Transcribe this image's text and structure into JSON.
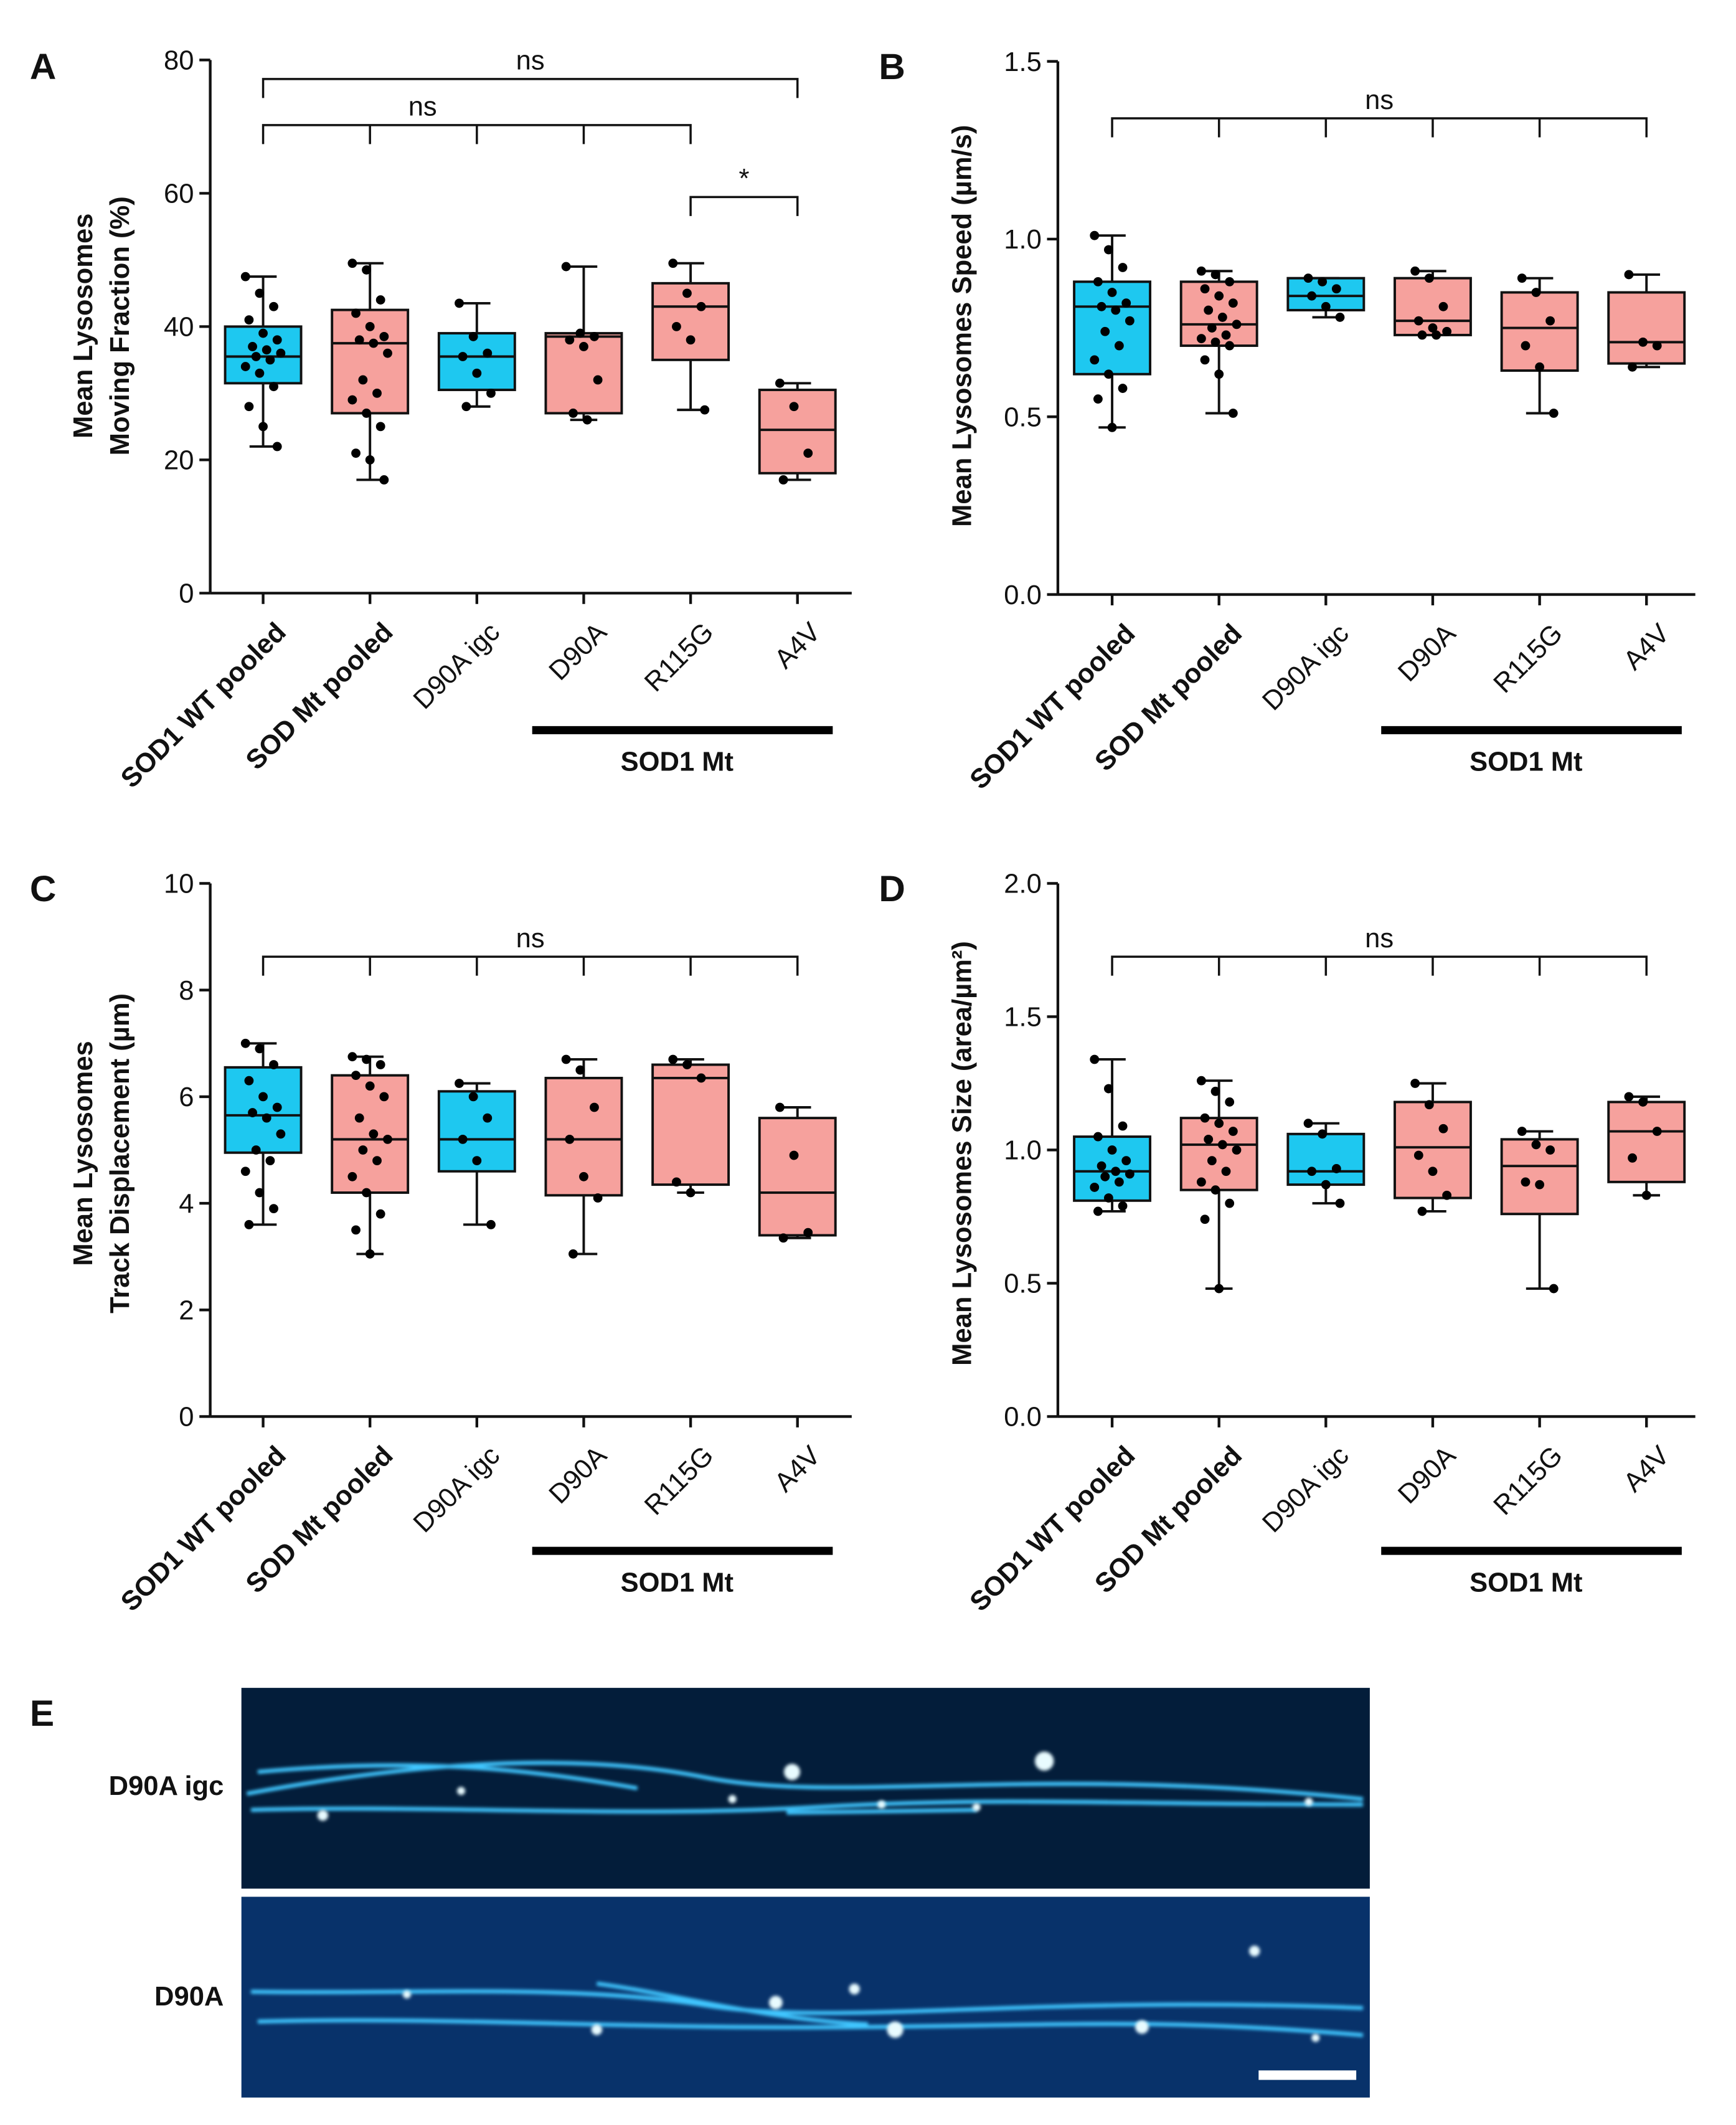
{
  "chart_data": [
    {
      "type": "box",
      "panel": "A",
      "ylabel": [
        "Mean Lysosomes",
        "Moving Fraction (%)"
      ],
      "categories": [
        "SOD1 WT pooled",
        "SOD Mt pooled",
        "D90A igc",
        "D90A",
        "R115G",
        "A4V"
      ],
      "colors": [
        "#1ec8f0",
        "#f6a19d",
        "#1ec8f0",
        "#f6a19d",
        "#f6a19d",
        "#f6a19d"
      ],
      "group_label": "SOD1 Mt",
      "annotations": [
        "ns",
        "ns",
        "*"
      ],
      "ylim": [
        0,
        80
      ],
      "yticks": [
        0,
        20,
        40,
        60,
        80
      ],
      "boxes": [
        {
          "min": 22,
          "q1": 31.5,
          "median": 35.5,
          "q3": 40,
          "max": 47.5,
          "points": [
            47.5,
            45,
            43,
            41,
            39,
            38,
            37,
            36.5,
            36,
            35.5,
            35,
            34,
            33,
            31,
            28,
            25,
            22
          ]
        },
        {
          "min": 17,
          "q1": 27,
          "median": 37.5,
          "q3": 42.5,
          "max": 49.5,
          "points": [
            49.5,
            48.5,
            44,
            42,
            40,
            38.5,
            38,
            37.5,
            36,
            32,
            30,
            29,
            27,
            25,
            21,
            20,
            17
          ]
        },
        {
          "min": 28,
          "q1": 30.5,
          "median": 35.5,
          "q3": 39,
          "max": 43.5,
          "points": [
            43.5,
            38.5,
            36,
            35.5,
            33,
            30,
            28
          ]
        },
        {
          "min": 26,
          "q1": 27,
          "median": 38.5,
          "q3": 39,
          "max": 49,
          "points": [
            49,
            39,
            38.5,
            38,
            37,
            32,
            27,
            26
          ]
        },
        {
          "min": 27.5,
          "q1": 35,
          "median": 43,
          "q3": 46.5,
          "max": 49.5,
          "points": [
            49.5,
            45,
            43,
            40,
            38,
            27.5
          ]
        },
        {
          "min": 17,
          "q1": 18,
          "median": 24.5,
          "q3": 30.5,
          "max": 31.5,
          "points": [
            31.5,
            28,
            21,
            17
          ]
        }
      ]
    },
    {
      "type": "box",
      "panel": "B",
      "ylabel": [
        "Mean Lysosomes  Speed (µm/s)"
      ],
      "categories": [
        "SOD1 WT pooled",
        "SOD Mt pooled",
        "D90A igc",
        "D90A",
        "R115G",
        "A4V"
      ],
      "colors": [
        "#1ec8f0",
        "#f6a19d",
        "#1ec8f0",
        "#f6a19d",
        "#f6a19d",
        "#f6a19d"
      ],
      "group_label": "SOD1 Mt",
      "annotations": [
        "ns"
      ],
      "ylim": [
        0,
        1.5
      ],
      "yticks": [
        {
          "value": 0,
          "label": "0.0"
        },
        {
          "value": 0.5,
          "label": "0.5"
        },
        {
          "value": 1,
          "label": "1.0"
        },
        {
          "value": 1.5,
          "label": "1.5"
        }
      ],
      "boxes": [
        {
          "min": 0.47,
          "q1": 0.62,
          "median": 0.81,
          "q3": 0.88,
          "max": 1.01,
          "points": [
            1.01,
            0.97,
            0.92,
            0.88,
            0.85,
            0.82,
            0.81,
            0.8,
            0.77,
            0.74,
            0.7,
            0.66,
            0.62,
            0.58,
            0.55,
            0.47
          ]
        },
        {
          "min": 0.51,
          "q1": 0.7,
          "median": 0.76,
          "q3": 0.88,
          "max": 0.91,
          "points": [
            0.91,
            0.9,
            0.88,
            0.86,
            0.84,
            0.82,
            0.8,
            0.78,
            0.76,
            0.75,
            0.73,
            0.72,
            0.71,
            0.7,
            0.66,
            0.62,
            0.51
          ]
        },
        {
          "min": 0.78,
          "q1": 0.8,
          "median": 0.84,
          "q3": 0.89,
          "max": 0.89,
          "points": [
            0.89,
            0.88,
            0.86,
            0.84,
            0.81,
            0.78
          ]
        },
        {
          "min": 0.73,
          "q1": 0.73,
          "median": 0.77,
          "q3": 0.89,
          "max": 0.91,
          "points": [
            0.91,
            0.89,
            0.81,
            0.77,
            0.75,
            0.74,
            0.73,
            0.73
          ]
        },
        {
          "min": 0.51,
          "q1": 0.63,
          "median": 0.75,
          "q3": 0.85,
          "max": 0.89,
          "points": [
            0.89,
            0.85,
            0.77,
            0.7,
            0.64,
            0.51
          ]
        },
        {
          "min": 0.64,
          "q1": 0.65,
          "median": 0.71,
          "q3": 0.85,
          "max": 0.9,
          "points": [
            0.9,
            0.71,
            0.7,
            0.64
          ]
        }
      ]
    },
    {
      "type": "box",
      "panel": "C",
      "ylabel": [
        "Mean Lysosomes",
        "Track Displacement (µm)"
      ],
      "categories": [
        "SOD1 WT pooled",
        "SOD Mt pooled",
        "D90A igc",
        "D90A",
        "R115G",
        "A4V"
      ],
      "colors": [
        "#1ec8f0",
        "#f6a19d",
        "#1ec8f0",
        "#f6a19d",
        "#f6a19d",
        "#f6a19d"
      ],
      "group_label": "SOD1 Mt",
      "annotations": [
        "ns"
      ],
      "ylim": [
        0,
        10
      ],
      "yticks": [
        0,
        2,
        4,
        6,
        8,
        10
      ],
      "boxes": [
        {
          "min": 3.6,
          "q1": 4.95,
          "median": 5.65,
          "q3": 6.55,
          "max": 7,
          "points": [
            7,
            6.9,
            6.6,
            6.3,
            6,
            5.8,
            5.7,
            5.6,
            5.3,
            5,
            4.8,
            4.6,
            4.2,
            3.9,
            3.6
          ]
        },
        {
          "min": 3.05,
          "q1": 4.2,
          "median": 5.2,
          "q3": 6.4,
          "max": 6.75,
          "points": [
            6.75,
            6.7,
            6.6,
            6.4,
            6.2,
            6,
            5.6,
            5.3,
            5.2,
            5,
            4.8,
            4.5,
            4.2,
            3.8,
            3.5,
            3.05
          ]
        },
        {
          "min": 3.6,
          "q1": 4.6,
          "median": 5.2,
          "q3": 6.1,
          "max": 6.25,
          "points": [
            6.25,
            6,
            5.6,
            5.2,
            4.8,
            3.6
          ]
        },
        {
          "min": 3.05,
          "q1": 4.15,
          "median": 5.2,
          "q3": 6.35,
          "max": 6.7,
          "points": [
            6.7,
            6.5,
            5.8,
            5.2,
            4.5,
            4.1,
            3.05
          ]
        },
        {
          "min": 4.2,
          "q1": 4.35,
          "median": 6.35,
          "q3": 6.6,
          "max": 6.7,
          "points": [
            6.7,
            6.6,
            6.35,
            4.4,
            4.2
          ]
        },
        {
          "min": 3.35,
          "q1": 3.4,
          "median": 4.2,
          "q3": 5.6,
          "max": 5.8,
          "points": [
            5.8,
            4.9,
            3.45,
            3.35
          ]
        }
      ]
    },
    {
      "type": "box",
      "panel": "D",
      "ylabel": [
        "Mean Lysosomes  Size (area/µm²)"
      ],
      "categories": [
        "SOD1 WT pooled",
        "SOD Mt pooled",
        "D90A igc",
        "D90A",
        "R115G",
        "A4V"
      ],
      "colors": [
        "#1ec8f0",
        "#f6a19d",
        "#1ec8f0",
        "#f6a19d",
        "#f6a19d",
        "#f6a19d"
      ],
      "group_label": "SOD1 Mt",
      "annotations": [
        "ns"
      ],
      "ylim": [
        0,
        2
      ],
      "yticks": [
        {
          "value": 0,
          "label": "0.0"
        },
        {
          "value": 0.5,
          "label": "0.5"
        },
        {
          "value": 1,
          "label": "1.0"
        },
        {
          "value": 1.5,
          "label": "1.5"
        },
        {
          "value": 2,
          "label": "2.0"
        }
      ],
      "boxes": [
        {
          "min": 0.77,
          "q1": 0.81,
          "median": 0.92,
          "q3": 1.05,
          "max": 1.34,
          "points": [
            1.34,
            1.23,
            1.09,
            1.05,
            1,
            0.96,
            0.94,
            0.92,
            0.91,
            0.9,
            0.88,
            0.86,
            0.82,
            0.79,
            0.77
          ]
        },
        {
          "min": 0.48,
          "q1": 0.85,
          "median": 1.02,
          "q3": 1.12,
          "max": 1.26,
          "points": [
            1.26,
            1.22,
            1.18,
            1.12,
            1.1,
            1.07,
            1.04,
            1.02,
            1,
            0.96,
            0.92,
            0.88,
            0.85,
            0.8,
            0.74,
            0.48
          ]
        },
        {
          "min": 0.8,
          "q1": 0.87,
          "median": 0.92,
          "q3": 1.06,
          "max": 1.1,
          "points": [
            1.1,
            1.06,
            0.93,
            0.92,
            0.87,
            0.8
          ]
        },
        {
          "min": 0.77,
          "q1": 0.82,
          "median": 1.01,
          "q3": 1.18,
          "max": 1.25,
          "points": [
            1.25,
            1.17,
            1.08,
            0.98,
            0.92,
            0.83,
            0.77
          ]
        },
        {
          "min": 0.48,
          "q1": 0.76,
          "median": 0.94,
          "q3": 1.04,
          "max": 1.07,
          "points": [
            1.07,
            1.02,
            1,
            0.88,
            0.87,
            0.48
          ]
        },
        {
          "min": 0.83,
          "q1": 0.88,
          "median": 1.07,
          "q3": 1.18,
          "max": 1.2,
          "points": [
            1.2,
            1.18,
            1.07,
            0.97,
            0.83
          ]
        }
      ]
    }
  ],
  "image_panel": {
    "label": "E",
    "rows": [
      "D90A igc",
      "D90A"
    ]
  }
}
